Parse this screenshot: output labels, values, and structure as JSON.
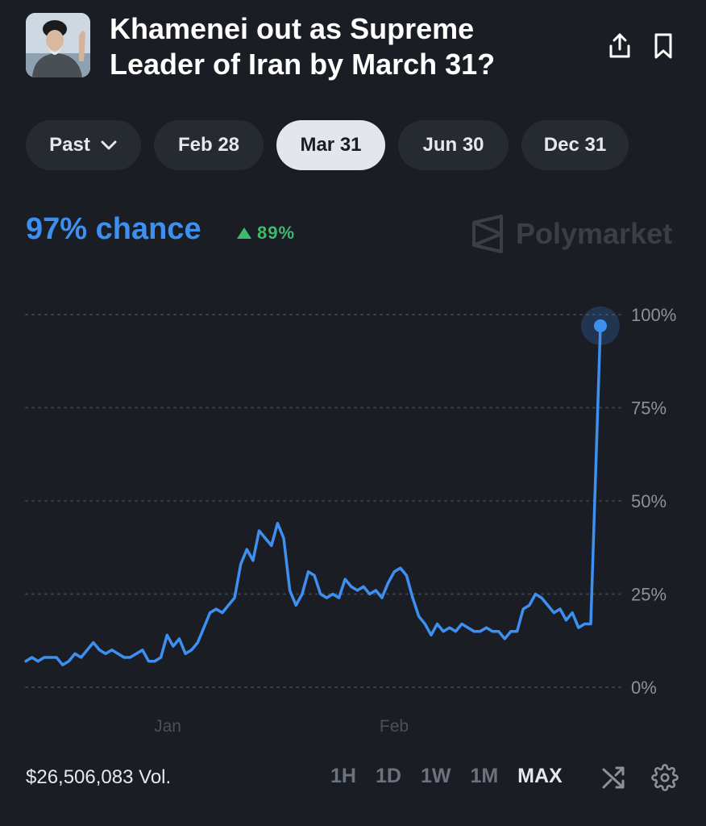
{
  "header": {
    "title": "Khamenei out as Supreme Leader of Iran by March 31?",
    "avatar_icon": "portrait-photo",
    "share_icon": "share-icon",
    "bookmark_icon": "bookmark-icon"
  },
  "date_tabs": [
    {
      "label": "Past",
      "has_dropdown": true,
      "active": false
    },
    {
      "label": "Feb 28",
      "active": false
    },
    {
      "label": "Mar 31",
      "active": true
    },
    {
      "label": "Jun 30",
      "active": false
    },
    {
      "label": "Dec 31",
      "active": false
    }
  ],
  "summary": {
    "chance": "97% chance",
    "change": "89%",
    "change_direction": "up",
    "brand": "Polymarket"
  },
  "chart_data": {
    "type": "line",
    "ylim": [
      0,
      100
    ],
    "y_ticks": [
      "100%",
      "75%",
      "50%",
      "25%",
      "0%"
    ],
    "x_ticks": [
      "Jan",
      "Feb"
    ],
    "grid": "dotted horizontal",
    "series": [
      {
        "color": "#3d8ff0",
        "values": [
          7,
          8,
          7,
          8,
          8,
          8,
          6,
          7,
          9,
          8,
          10,
          12,
          10,
          9,
          10,
          9,
          8,
          8,
          9,
          10,
          7,
          7,
          8,
          14,
          11,
          13,
          9,
          10,
          12,
          16,
          20,
          21,
          20,
          22,
          24,
          33,
          37,
          34,
          42,
          40,
          38,
          44,
          40,
          26,
          22,
          25,
          31,
          30,
          25,
          24,
          25,
          24,
          29,
          27,
          26,
          27,
          25,
          26,
          24,
          28,
          31,
          32,
          30,
          24,
          19,
          17,
          14,
          17,
          15,
          16,
          15,
          17,
          16,
          15,
          15,
          16,
          15,
          15,
          13,
          15,
          15,
          21,
          22,
          25,
          24,
          22,
          20,
          21,
          18,
          20,
          16,
          17,
          17,
          97
        ]
      }
    ]
  },
  "footer": {
    "volume": "$26,506,083 Vol.",
    "ranges": [
      "1H",
      "1D",
      "1W",
      "1M",
      "MAX"
    ],
    "active_range": "MAX",
    "shuffle_icon": "shuffle-icon",
    "settings_icon": "gear-icon"
  }
}
